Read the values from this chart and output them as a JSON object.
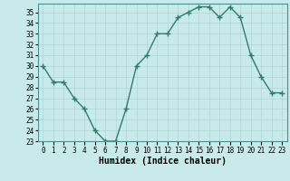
{
  "x": [
    0,
    1,
    2,
    3,
    4,
    5,
    6,
    7,
    8,
    9,
    10,
    11,
    12,
    13,
    14,
    15,
    16,
    17,
    18,
    19,
    20,
    21,
    22,
    23
  ],
  "y": [
    30,
    28.5,
    28.5,
    27,
    26,
    24,
    23,
    23,
    26,
    30,
    31,
    33,
    33,
    34.5,
    35,
    35.5,
    35.5,
    34.5,
    35.5,
    34.5,
    31,
    29,
    27.5,
    27.5
  ],
  "line_color": "#2e7d6e",
  "marker": "+",
  "marker_size": 4,
  "bg_color": "#c8eaea",
  "grid_color": "#b0d4d4",
  "xlabel": "Humidex (Indice chaleur)",
  "xlim": [
    -0.5,
    23.5
  ],
  "ylim": [
    23,
    35.8
  ],
  "yticks": [
    23,
    24,
    25,
    26,
    27,
    28,
    29,
    30,
    31,
    32,
    33,
    34,
    35
  ],
  "xticks": [
    0,
    1,
    2,
    3,
    4,
    5,
    6,
    7,
    8,
    9,
    10,
    11,
    12,
    13,
    14,
    15,
    16,
    17,
    18,
    19,
    20,
    21,
    22,
    23
  ],
  "tick_label_fontsize": 5.5,
  "xlabel_fontsize": 7,
  "linewidth": 1.0,
  "marker_color": "#2e7d6e"
}
